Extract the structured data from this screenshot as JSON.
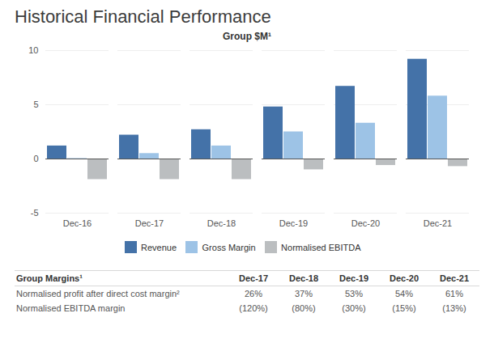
{
  "chart_data": {
    "type": "bar",
    "title": "Historical Financial Performance",
    "subtitle": "Group $M¹",
    "categories": [
      "Dec-16",
      "Dec-17",
      "Dec-18",
      "Dec-19",
      "Dec-20",
      "Dec-21"
    ],
    "series": [
      {
        "name": "Revenue",
        "color": "#4472a8",
        "values": [
          1.2,
          2.2,
          2.7,
          4.8,
          6.7,
          9.2
        ]
      },
      {
        "name": "Gross Margin",
        "color": "#9dc3e6",
        "values": [
          0.04,
          0.5,
          1.2,
          2.5,
          3.3,
          5.8
        ]
      },
      {
        "name": "Normalised EBITDA",
        "color": "#bbbec0",
        "values": [
          -1.9,
          -1.9,
          -1.9,
          -1.0,
          -0.6,
          -0.7
        ]
      }
    ],
    "ylim": [
      -5,
      10
    ],
    "yticks": [
      -5,
      0,
      5,
      10
    ],
    "grid": true,
    "legend": "bottom",
    "table": {
      "header": "Group Margins¹",
      "columns": [
        "Dec-17",
        "Dec-18",
        "Dec-19",
        "Dec-20",
        "Dec-21"
      ],
      "rows": [
        {
          "label": "Normalised profit after direct cost margin²",
          "values": [
            26,
            37,
            53,
            54,
            61
          ],
          "value_labels": [
            "26%",
            "37%",
            "53%",
            "54%",
            "61%"
          ]
        },
        {
          "label": "Normalised EBITDA margin",
          "values": [
            -120,
            -80,
            -30,
            -15,
            -13
          ],
          "value_labels": [
            "(120%)",
            "(80%)",
            "(30%)",
            "(15%)",
            "(13%)"
          ]
        }
      ]
    }
  }
}
